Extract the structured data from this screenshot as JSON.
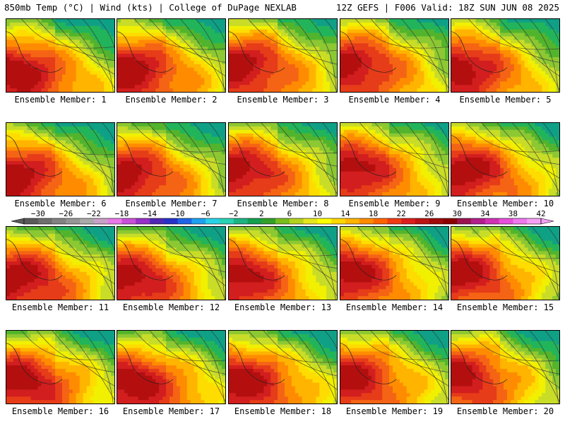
{
  "header": {
    "left_title": "850mb Temp (°C) | Wind (kts) | College of DuPage NEXLAB",
    "right_title": "12Z GEFS | F006 Valid: 18Z SUN JUN 08 2025"
  },
  "panels": [
    {
      "caption": "Ensemble Member: 1"
    },
    {
      "caption": "Ensemble Member: 2"
    },
    {
      "caption": "Ensemble Member: 3"
    },
    {
      "caption": "Ensemble Member: 4"
    },
    {
      "caption": "Ensemble Member: 5"
    },
    {
      "caption": "Ensemble Member: 6"
    },
    {
      "caption": "Ensemble Member: 7"
    },
    {
      "caption": "Ensemble Member: 8"
    },
    {
      "caption": "Ensemble Member: 9"
    },
    {
      "caption": "Ensemble Member: 10"
    },
    {
      "caption": "Ensemble Member: 11"
    },
    {
      "caption": "Ensemble Member: 12"
    },
    {
      "caption": "Ensemble Member: 13"
    },
    {
      "caption": "Ensemble Member: 14"
    },
    {
      "caption": "Ensemble Member: 15"
    },
    {
      "caption": "Ensemble Member: 16"
    },
    {
      "caption": "Ensemble Member: 17"
    },
    {
      "caption": "Ensemble Member: 18"
    },
    {
      "caption": "Ensemble Member: 19"
    },
    {
      "caption": "Ensemble Member: 20"
    }
  ],
  "colorbar": {
    "labels": [
      "−30",
      "−26",
      "−22",
      "−18",
      "−14",
      "−10",
      "−6",
      "−2",
      "2",
      "6",
      "10",
      "14",
      "18",
      "22",
      "26",
      "30",
      "34",
      "38",
      "42"
    ],
    "colors": [
      "#5a5a5a",
      "#6e6e6e",
      "#828282",
      "#969696",
      "#aaaaaa",
      "#c8a0c8",
      "#e878e8",
      "#c850d8",
      "#9632c8",
      "#5028b4",
      "#2832c8",
      "#1e64e6",
      "#1ea0f0",
      "#28d2e6",
      "#28d2b4",
      "#1eb482",
      "#14a050",
      "#32a028",
      "#78be1e",
      "#b4d21e",
      "#e6e61e",
      "#ffff00",
      "#ffd700",
      "#ffb400",
      "#ff8c00",
      "#ff6400",
      "#f03c14",
      "#dc1e1e",
      "#be1414",
      "#a00a0a",
      "#8c0000",
      "#9b1450",
      "#b41e8c",
      "#d232b4",
      "#e650dc",
      "#f078f0",
      "#f5a0f5"
    ],
    "range_min": -32,
    "range_max": 42,
    "step": 2
  }
}
